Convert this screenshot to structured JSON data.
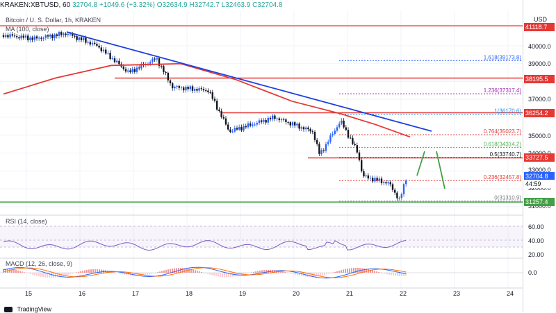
{
  "header": {
    "symbol": "KRAKEN:XBTUSD, 60",
    "ohlc": "32704.8 +1049.6 (+3.32%)",
    "open": "O32634.9",
    "high": "H32742.7",
    "low": "L32463.9",
    "close": "C32704.8"
  },
  "main": {
    "title": "Bitcoin / U. S. Dollar, 1h, KRAKEN",
    "ma_label": "MA (100, close)"
  },
  "rsi": {
    "label": "RSI (14, close)"
  },
  "macd": {
    "label": "MACD (12, 26, close, 9)"
  },
  "axis": {
    "currency": "USD",
    "price_ticks": [
      "40000.0",
      "39000.0",
      "37000.0",
      "35000.0",
      "34000.0",
      "33000.0",
      "32000.0",
      "31000.0"
    ],
    "rsi_ticks": [
      "60.00",
      "40.00",
      "20.00"
    ],
    "macd_ticks": [
      "0.0"
    ],
    "time_ticks": [
      "15",
      "16",
      "17",
      "18",
      "19",
      "20",
      "21",
      "22",
      "23",
      "24"
    ]
  },
  "tags": {
    "r1": "41118.7",
    "r2": "38195.5",
    "r3": "36254.2",
    "r4": "33727.5",
    "last": "32704.8",
    "countdown": "44:59",
    "s1": "31257.4"
  },
  "fib_labels": [
    "1.618(39173.8)",
    "1.236(37317.4)",
    "1(36170.6)",
    "0.764(35023.7)",
    "0.618(34314.2)",
    "0.5(33740.7)",
    "0.236(32457.8)",
    "0(31310.9)"
  ],
  "brand": "TradingView",
  "colors": {
    "up": "#26a69a",
    "candle_up": "#2962ff",
    "candle_down": "#131722",
    "resistance": "#e53935",
    "support": "#43a047",
    "trendline": "#1e40e0",
    "ma": "#e53935",
    "rsi": "#7e57c2"
  },
  "chart_data": {
    "type": "line",
    "title": "Bitcoin / U. S. Dollar, 1h, KRAKEN",
    "x": [
      "15",
      "16",
      "17",
      "18",
      "19",
      "20",
      "21",
      "22"
    ],
    "series": [
      {
        "name": "MA (100, close)",
        "values": [
          37300,
          38300,
          38900,
          39000,
          38100,
          36600,
          35800,
          35100
        ]
      }
    ],
    "ylim": [
      31000,
      41500
    ],
    "horizontal_levels": [
      41118.7,
      38195.5,
      36254.2,
      33727.5,
      31257.4
    ],
    "last_price": 32704.8
  }
}
